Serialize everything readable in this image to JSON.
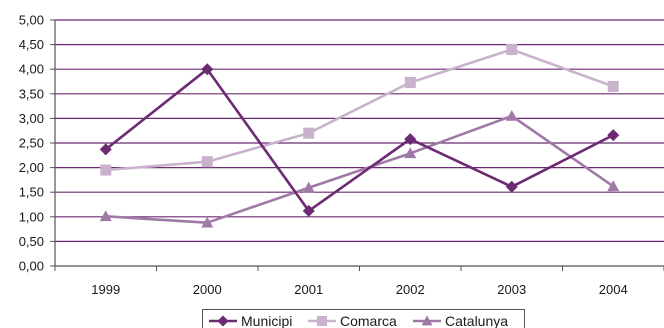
{
  "chart_data": {
    "type": "line",
    "categories": [
      "1999",
      "2000",
      "2001",
      "2002",
      "2003",
      "2004"
    ],
    "ylim": [
      0,
      5
    ],
    "ytick_step": 0.5,
    "ytick_labels": [
      "0,00",
      "0,50",
      "1,00",
      "1,50",
      "2,00",
      "2,50",
      "3,00",
      "3,50",
      "4,00",
      "4,50",
      "5,00"
    ],
    "grid": true,
    "legend_position": "bottom",
    "series": [
      {
        "name": "Municipi",
        "values": [
          2.37,
          4.0,
          1.12,
          2.58,
          1.61,
          2.66
        ],
        "color": "#6b2a72",
        "marker": "diamond"
      },
      {
        "name": "Comarca",
        "values": [
          1.95,
          2.12,
          2.7,
          3.73,
          4.4,
          3.65
        ],
        "color": "#c9b2cc",
        "marker": "square"
      },
      {
        "name": "Catalunya",
        "values": [
          1.01,
          0.88,
          1.59,
          2.29,
          3.05,
          1.62
        ],
        "color": "#a07aa6",
        "marker": "triangle"
      }
    ]
  },
  "colors": {
    "grid": "#6b2a72",
    "axis": "#555555"
  }
}
